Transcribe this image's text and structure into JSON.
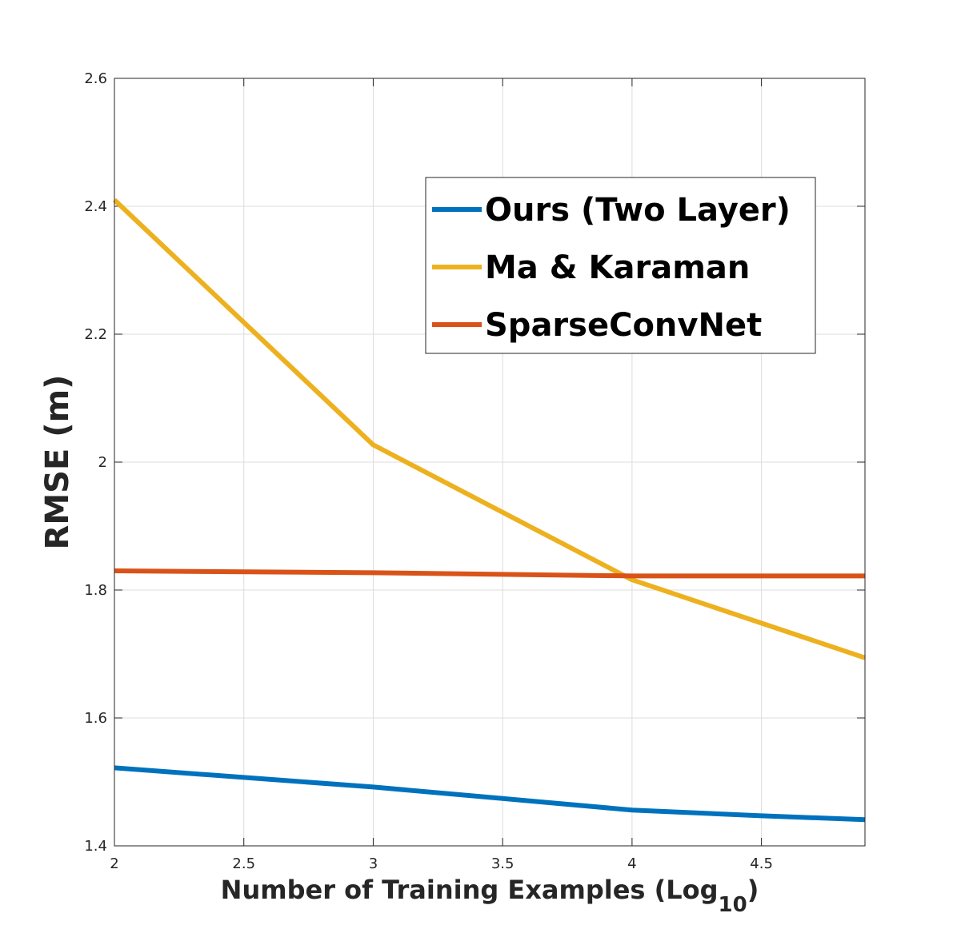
{
  "chart_data": {
    "type": "line",
    "xlabel": "Number of Training Examples (Log",
    "xlabel_subscript": "10",
    "xlabel_suffix": ")",
    "ylabel": "RMSE (m)",
    "xlim": [
      2,
      4.9
    ],
    "ylim": [
      1.4,
      2.6
    ],
    "xticks": [
      2,
      2.5,
      3,
      3.5,
      4,
      4.5
    ],
    "xtick_labels": [
      "2",
      "2.5",
      "3",
      "3.5",
      "4",
      "4.5"
    ],
    "yticks": [
      1.4,
      1.6,
      1.8,
      2.0,
      2.2,
      2.4,
      2.6
    ],
    "ytick_labels": [
      "1.4",
      "1.6",
      "1.8",
      "2",
      "2.2",
      "2.4",
      "2.6"
    ],
    "grid": true,
    "legend_position": "top-right",
    "series": [
      {
        "name": "Ours (Two Layer)",
        "color": "#0072BD",
        "x": [
          2,
          2.5,
          3,
          3.5,
          4,
          4.5,
          4.9
        ],
        "y": [
          1.522,
          1.507,
          1.492,
          1.474,
          1.456,
          1.447,
          1.441
        ]
      },
      {
        "name": "Ma & Karaman",
        "color": "#EDB120",
        "x": [
          2,
          3,
          4,
          4.9
        ],
        "y": [
          2.41,
          2.027,
          1.816,
          1.694
        ]
      },
      {
        "name": "SparseConvNet",
        "color": "#D95319",
        "x": [
          2,
          3,
          4,
          4.9
        ],
        "y": [
          1.83,
          1.827,
          1.822,
          1.822
        ]
      }
    ]
  }
}
